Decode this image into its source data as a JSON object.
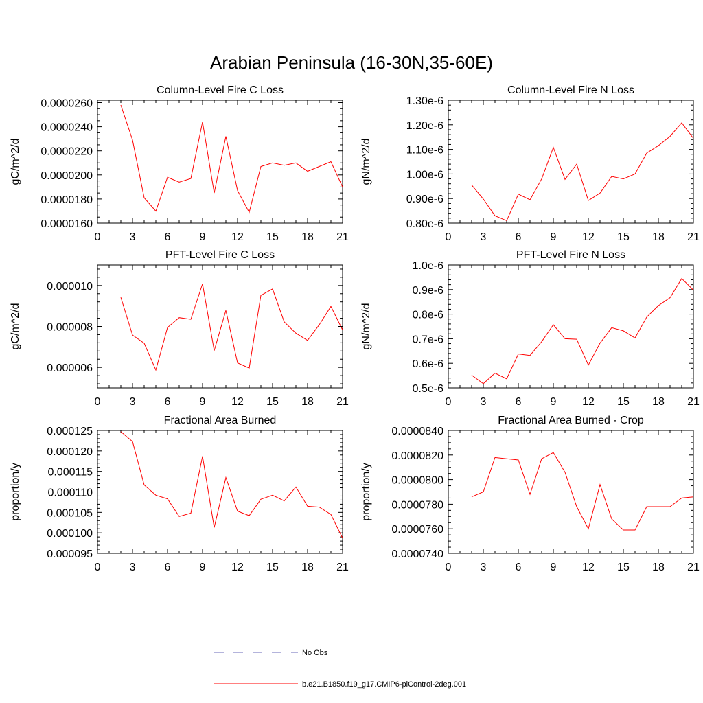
{
  "title": "Arabian Peninsula (16-30N,35-60E)",
  "legend": [
    {
      "label": "No Obs",
      "color": "#6a6ab8",
      "style": "dashed"
    },
    {
      "label": "b.e21.B1850.f19_g17.CMIP6-piControl-2deg.001",
      "color": "#ff0000",
      "style": "solid"
    }
  ],
  "chart_data": [
    {
      "type": "line",
      "title": "Column-Level Fire C Loss",
      "ylabel": "gC/m^2/d",
      "xlim": [
        0,
        21
      ],
      "ylim": [
        1.6e-05,
        2.62e-05
      ],
      "xticks": [
        0,
        3,
        6,
        9,
        12,
        15,
        18,
        21
      ],
      "xticklabels": [
        "0",
        "3",
        "6",
        "9",
        "12",
        "15",
        "18",
        "21"
      ],
      "yticks": [
        1.6e-05,
        1.8e-05,
        2e-05,
        2.2e-05,
        2.4e-05,
        2.6e-05
      ],
      "yticklabels": [
        "0.0000160",
        "0.0000180",
        "0.0000200",
        "0.0000220",
        "0.0000240",
        "0.0000260"
      ],
      "yminor": 5e-07,
      "series": [
        {
          "name": "b.e21.B1850.f19_g17.CMIP6-piControl-2deg.001",
          "x": [
            2,
            3,
            4,
            5,
            6,
            7,
            8,
            9,
            10,
            11,
            12,
            13,
            14,
            15,
            16,
            17,
            18,
            19,
            20,
            21
          ],
          "values": [
            2.58e-05,
            2.29e-05,
            1.81e-05,
            1.7e-05,
            1.98e-05,
            1.94e-05,
            1.97e-05,
            2.44e-05,
            1.85e-05,
            2.32e-05,
            1.87e-05,
            1.69e-05,
            2.07e-05,
            2.1e-05,
            2.08e-05,
            2.1e-05,
            2.03e-05,
            2.07e-05,
            2.11e-05,
            1.9e-05
          ]
        }
      ]
    },
    {
      "type": "line",
      "title": "Column-Level Fire N Loss",
      "ylabel": "gN/m^2/d",
      "xlim": [
        0,
        21
      ],
      "ylim": [
        8e-07,
        1.3e-06
      ],
      "xticks": [
        0,
        3,
        6,
        9,
        12,
        15,
        18,
        21
      ],
      "xticklabels": [
        "0",
        "3",
        "6",
        "9",
        "12",
        "15",
        "18",
        "21"
      ],
      "yticks": [
        8e-07,
        9e-07,
        1e-06,
        1.1e-06,
        1.2e-06,
        1.3e-06
      ],
      "yticklabels": [
        "0.80e-6",
        "0.90e-6",
        "1.00e-6",
        "1.10e-6",
        "1.20e-6",
        "1.30e-6"
      ],
      "yminor": 2e-08,
      "series": [
        {
          "name": "b.e21.B1850.f19_g17.CMIP6-piControl-2deg.001",
          "x": [
            2,
            3,
            4,
            5,
            6,
            7,
            8,
            9,
            10,
            11,
            12,
            13,
            14,
            15,
            16,
            17,
            18,
            19,
            20,
            21
          ],
          "values": [
            9.55e-07,
            8.98e-07,
            8.3e-07,
            8.1e-07,
            9.18e-07,
            8.95e-07,
            9.8e-07,
            1.108e-06,
            9.78e-07,
            1.04e-06,
            8.92e-07,
            9.22e-07,
            9.9e-07,
            9.8e-07,
            1e-06,
            1.085e-06,
            1.115e-06,
            1.153e-06,
            1.208e-06,
            1.145e-06
          ]
        }
      ]
    },
    {
      "type": "line",
      "title": "PFT-Level Fire C Loss",
      "ylabel": "gC/m^2/d",
      "xlim": [
        0,
        21
      ],
      "ylim": [
        5e-06,
        1.1e-05
      ],
      "xticks": [
        0,
        3,
        6,
        9,
        12,
        15,
        18,
        21
      ],
      "xticklabels": [
        "0",
        "3",
        "6",
        "9",
        "12",
        "15",
        "18",
        "21"
      ],
      "yticks": [
        6e-06,
        8e-06,
        1e-05
      ],
      "yticklabels": [
        "0.000006",
        "0.000008",
        "0.000010"
      ],
      "yminor": 4e-07,
      "series": [
        {
          "name": "b.e21.B1850.f19_g17.CMIP6-piControl-2deg.001",
          "x": [
            2,
            3,
            4,
            5,
            6,
            7,
            8,
            9,
            10,
            11,
            12,
            13,
            14,
            15,
            16,
            17,
            18,
            19,
            20,
            21
          ],
          "values": [
            9.42e-06,
            7.58e-06,
            7.18e-06,
            5.87e-06,
            7.95e-06,
            8.43e-06,
            8.35e-06,
            1.008e-05,
            6.82e-06,
            8.78e-06,
            6.22e-06,
            5.97e-06,
            9.52e-06,
            9.83e-06,
            8.22e-06,
            7.67e-06,
            7.32e-06,
            8.08e-06,
            8.98e-06,
            7.83e-06
          ]
        }
      ]
    },
    {
      "type": "line",
      "title": "PFT-Level Fire N Loss",
      "ylabel": "gN/m^2/d",
      "xlim": [
        0,
        21
      ],
      "ylim": [
        5e-07,
        1e-06
      ],
      "xticks": [
        0,
        3,
        6,
        9,
        12,
        15,
        18,
        21
      ],
      "xticklabels": [
        "0",
        "3",
        "6",
        "9",
        "12",
        "15",
        "18",
        "21"
      ],
      "yticks": [
        5e-07,
        6e-07,
        7e-07,
        8e-07,
        9e-07,
        1e-06
      ],
      "yticklabels": [
        "0.5e-6",
        "0.6e-6",
        "0.7e-6",
        "0.8e-6",
        "0.9e-6",
        "1.0e-6"
      ],
      "yminor": 2e-08,
      "series": [
        {
          "name": "b.e21.B1850.f19_g17.CMIP6-piControl-2deg.001",
          "x": [
            2,
            3,
            4,
            5,
            6,
            7,
            8,
            9,
            10,
            11,
            12,
            13,
            14,
            15,
            16,
            17,
            18,
            19,
            20,
            21
          ],
          "values": [
            5.52e-07,
            5.17e-07,
            5.6e-07,
            5.37e-07,
            6.38e-07,
            6.32e-07,
            6.88e-07,
            7.57e-07,
            7e-07,
            6.98e-07,
            5.93e-07,
            6.82e-07,
            7.45e-07,
            7.32e-07,
            7.03e-07,
            7.88e-07,
            8.35e-07,
            8.67e-07,
            9.45e-07,
            8.98e-07
          ]
        }
      ]
    },
    {
      "type": "line",
      "title": "Fractional Area Burned",
      "ylabel": "proportion/y",
      "xlim": [
        0,
        21
      ],
      "ylim": [
        9.5e-05,
        0.000125
      ],
      "xticks": [
        0,
        3,
        6,
        9,
        12,
        15,
        18,
        21
      ],
      "xticklabels": [
        "0",
        "3",
        "6",
        "9",
        "12",
        "15",
        "18",
        "21"
      ],
      "yticks": [
        9.5e-05,
        0.0001,
        0.000105,
        0.00011,
        0.000115,
        0.00012,
        0.000125
      ],
      "yticklabels": [
        "0.000095",
        "0.000100",
        "0.000105",
        "0.000110",
        "0.000115",
        "0.000120",
        "0.000125"
      ],
      "yminor": 1e-06,
      "series": [
        {
          "name": "b.e21.B1850.f19_g17.CMIP6-piControl-2deg.001",
          "x": [
            2,
            3,
            4,
            5,
            6,
            7,
            8,
            9,
            10,
            11,
            12,
            13,
            14,
            15,
            16,
            17,
            18,
            19,
            20,
            21
          ],
          "values": [
            0.0001247,
            0.0001223,
            0.0001117,
            0.0001092,
            0.0001083,
            0.000104,
            0.0001048,
            0.0001187,
            0.0001013,
            0.0001135,
            0.0001053,
            0.0001042,
            0.0001082,
            0.0001092,
            0.0001078,
            0.0001112,
            0.0001065,
            0.0001063,
            0.0001045,
            9.87e-05
          ]
        }
      ]
    },
    {
      "type": "line",
      "title": "Fractional Area Burned - Crop",
      "ylabel": "proportion/y",
      "xlim": [
        0,
        21
      ],
      "ylim": [
        7.4e-05,
        8.4e-05
      ],
      "xticks": [
        0,
        3,
        6,
        9,
        12,
        15,
        18,
        21
      ],
      "xticklabels": [
        "0",
        "3",
        "6",
        "9",
        "12",
        "15",
        "18",
        "21"
      ],
      "yticks": [
        7.4e-05,
        7.6e-05,
        7.8e-05,
        8e-05,
        8.2e-05,
        8.4e-05
      ],
      "yticklabels": [
        "0.0000740",
        "0.0000760",
        "0.0000780",
        "0.0000800",
        "0.0000820",
        "0.0000840"
      ],
      "yminor": 5e-07,
      "series": [
        {
          "name": "b.e21.B1850.f19_g17.CMIP6-piControl-2deg.001",
          "x": [
            2,
            3,
            4,
            5,
            6,
            7,
            8,
            9,
            10,
            11,
            12,
            13,
            14,
            15,
            16,
            17,
            18,
            19,
            20,
            21
          ],
          "values": [
            7.86e-05,
            7.9e-05,
            8.18e-05,
            8.17e-05,
            8.16e-05,
            7.88e-05,
            8.17e-05,
            8.22e-05,
            8.06e-05,
            7.78e-05,
            7.6e-05,
            7.96e-05,
            7.68e-05,
            7.59e-05,
            7.59e-05,
            7.78e-05,
            7.78e-05,
            7.78e-05,
            7.85e-05,
            7.86e-05
          ]
        }
      ]
    }
  ]
}
